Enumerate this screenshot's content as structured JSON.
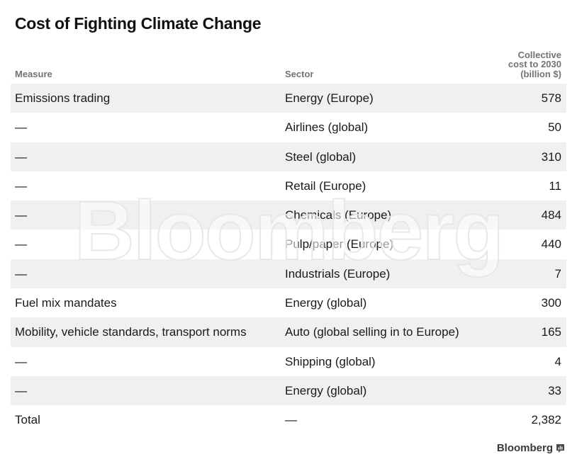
{
  "chart_data": {
    "type": "table",
    "title": "Cost of Fighting Climate Change",
    "columns": [
      "Measure",
      "Sector",
      "Collective cost to 2030 (billion $)"
    ],
    "rows": [
      {
        "measure": "Emissions trading",
        "sector": "Energy (Europe)",
        "cost": "578"
      },
      {
        "measure": "—",
        "sector": "Airlines (global)",
        "cost": "50"
      },
      {
        "measure": "—",
        "sector": "Steel (global)",
        "cost": "310"
      },
      {
        "measure": "—",
        "sector": "Retail (Europe)",
        "cost": "11"
      },
      {
        "measure": "—",
        "sector": "Chemicals (Europe)",
        "cost": "484"
      },
      {
        "measure": "—",
        "sector": "Pulp/paper (Europe)",
        "cost": "440"
      },
      {
        "measure": "—",
        "sector": "Industrials (Europe)",
        "cost": "7"
      },
      {
        "measure": "Fuel mix mandates",
        "sector": "Energy (global)",
        "cost": "300"
      },
      {
        "measure": "Mobility, vehicle standards, transport norms",
        "sector": "Auto (global selling in to Europe)",
        "cost": "165"
      },
      {
        "measure": "—",
        "sector": "Shipping (global)",
        "cost": "4"
      },
      {
        "measure": "—",
        "sector": "Energy (global)",
        "cost": "33"
      },
      {
        "measure": "Total",
        "sector": "—",
        "cost": "2,382"
      }
    ]
  },
  "header": {
    "measure": "Measure",
    "sector": "Sector",
    "cost": "Collective\ncost to 2030\n(billion $)"
  },
  "watermark": "Bloomberg",
  "footer": {
    "brand": "Bloomberg",
    "icon": "bloomberg-chart-icon"
  },
  "colors": {
    "row_shade": "#f0f0f0",
    "header_text": "#737373"
  }
}
